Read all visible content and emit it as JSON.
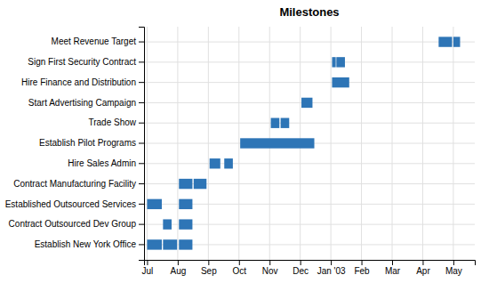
{
  "chart_data": {
    "type": "gantt",
    "title": "Milestones",
    "orientation": "horizontal",
    "color": "#2E75B6",
    "grid": true,
    "categories": [
      "Establish New York Office",
      "Contract Outsourced Dev Group",
      "Established Outsourced Services",
      "Contract Manufacturing Facility",
      "Hire Sales Admin",
      "Establish Pilot Programs",
      "Trade Show",
      "Start Advertising Campaign",
      "Hire Finance and Distribution",
      "Sign First Security Contract",
      "Meet Revenue Target"
    ],
    "segments": [
      {
        "task": "Establish New York Office",
        "start": 0.0,
        "duration": 0.48
      },
      {
        "task": "Establish New York Office",
        "start": 0.52,
        "duration": 0.46
      },
      {
        "task": "Establish New York Office",
        "start": 1.04,
        "duration": 0.44
      },
      {
        "task": "Contract Outsourced Dev Group",
        "start": 0.52,
        "duration": 0.28
      },
      {
        "task": "Contract Outsourced Dev Group",
        "start": 1.04,
        "duration": 0.44
      },
      {
        "task": "Established Outsourced Services",
        "start": 0.0,
        "duration": 0.48
      },
      {
        "task": "Established Outsourced Services",
        "start": 1.04,
        "duration": 0.44
      },
      {
        "task": "Contract Manufacturing Facility",
        "start": 1.04,
        "duration": 0.44
      },
      {
        "task": "Contract Manufacturing Facility",
        "start": 1.52,
        "duration": 0.42
      },
      {
        "task": "Hire Sales Admin",
        "start": 2.04,
        "duration": 0.35
      },
      {
        "task": "Hire Sales Admin",
        "start": 2.52,
        "duration": 0.28
      },
      {
        "task": "Establish Pilot Programs",
        "start": 3.04,
        "duration": 2.42
      },
      {
        "task": "Trade Show",
        "start": 4.04,
        "duration": 0.28
      },
      {
        "task": "Trade Show",
        "start": 4.36,
        "duration": 0.28
      },
      {
        "task": "Start Advertising Campaign",
        "start": 5.04,
        "duration": 0.36
      },
      {
        "task": "Hire Finance and Distribution",
        "start": 6.04,
        "duration": 0.56
      },
      {
        "task": "Sign First Security Contract",
        "start": 6.04,
        "duration": 0.12
      },
      {
        "task": "Sign First Security Contract",
        "start": 6.18,
        "duration": 0.28
      },
      {
        "task": "Meet Revenue Target",
        "start": 9.52,
        "duration": 0.44
      },
      {
        "task": "Meet Revenue Target",
        "start": 10.0,
        "duration": 0.22
      }
    ],
    "xlim": [
      -0.1,
      10.7
    ],
    "xticks": [
      {
        "value": 0,
        "label": "Jul"
      },
      {
        "value": 1,
        "label": "Aug"
      },
      {
        "value": 2,
        "label": "Sep"
      },
      {
        "value": 3,
        "label": "Oct"
      },
      {
        "value": 4,
        "label": "Nov"
      },
      {
        "value": 5,
        "label": "Dec"
      },
      {
        "value": 6,
        "label": "Jan '03"
      },
      {
        "value": 7,
        "label": "Feb"
      },
      {
        "value": 8,
        "label": "Mar"
      },
      {
        "value": 9,
        "label": "Apr"
      },
      {
        "value": 10,
        "label": "May"
      }
    ]
  }
}
